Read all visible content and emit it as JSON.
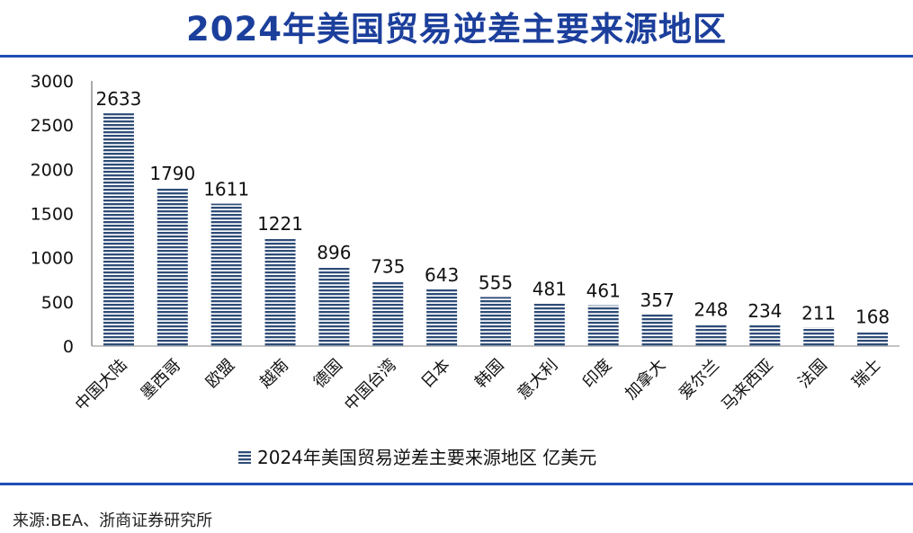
{
  "title": "2024年美国贸易逆差主要来源地区",
  "source": "来源:BEA、浙商证券研究所",
  "colors": {
    "title": "#1c3f9c",
    "rule": "#1f4db4",
    "bar": "#2e4c78"
  },
  "chart_data": {
    "type": "bar",
    "title": "2024年美国贸易逆差主要来源地区",
    "xlabel": "",
    "ylabel": "",
    "ylim": [
      0,
      3000
    ],
    "yticks": [
      0,
      500,
      1000,
      1500,
      2000,
      2500,
      3000
    ],
    "grid": false,
    "legend_position": "bottom",
    "categories": [
      "中国大陆",
      "墨西哥",
      "欧盟",
      "越南",
      "德国",
      "中国台湾",
      "日本",
      "韩国",
      "意大利",
      "印度",
      "加拿大",
      "爱尔兰",
      "马来西亚",
      "法国",
      "瑞士"
    ],
    "series": [
      {
        "name": "2024年美国贸易逆差主要来源地区 亿美元",
        "values": [
          2633,
          1790,
          1611,
          1221,
          896,
          735,
          643,
          555,
          481,
          461,
          357,
          248,
          234,
          211,
          168
        ]
      }
    ]
  }
}
